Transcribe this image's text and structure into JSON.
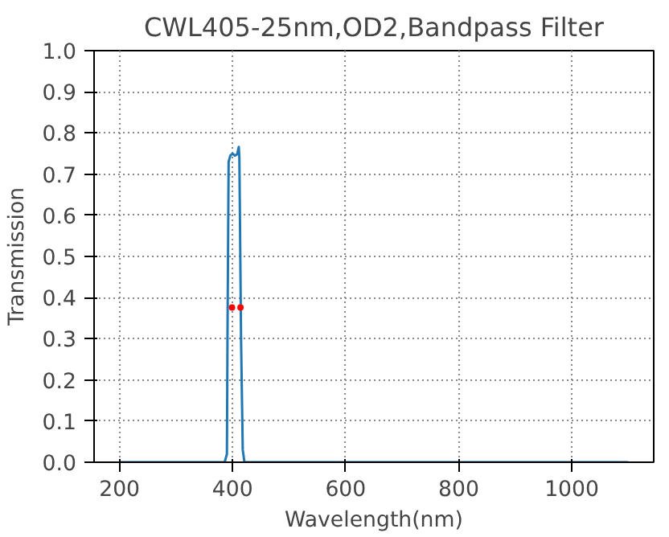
{
  "chart_data": {
    "type": "line",
    "title": "CWL405-25nm,OD2,Bandpass Filter",
    "xlabel": "Wavelength(nm)",
    "ylabel": "Transmission",
    "xlim": [
      155,
      1145
    ],
    "ylim": [
      0,
      1.0
    ],
    "xticks": [
      200,
      400,
      600,
      800,
      1000
    ],
    "yticks": [
      {
        "value": 0,
        "label": "0.0"
      },
      0.1,
      0.2,
      0.3,
      0.4,
      0.5,
      0.6,
      0.7,
      0.8,
      0.9,
      {
        "value": 1,
        "label": "1.0"
      }
    ],
    "grid": true,
    "series": [
      {
        "color": "#1f77b4",
        "x": [
          200,
          380,
          386,
          388,
          390,
          391,
          393,
          396,
          400,
          404,
          408,
          410,
          411,
          412,
          413,
          415,
          418,
          421,
          425,
          1100
        ],
        "values": [
          0,
          0,
          0,
          0.01,
          0.02,
          0.3,
          0.73,
          0.745,
          0.75,
          0.745,
          0.748,
          0.76,
          0.766,
          0.74,
          0.6,
          0.3,
          0.03,
          0,
          0,
          0
        ]
      },
      {
        "type": "scatter",
        "color": "#ff0000",
        "marker": "circle",
        "x": [
          399,
          414
        ],
        "values": [
          0.376,
          0.376
        ]
      }
    ]
  }
}
